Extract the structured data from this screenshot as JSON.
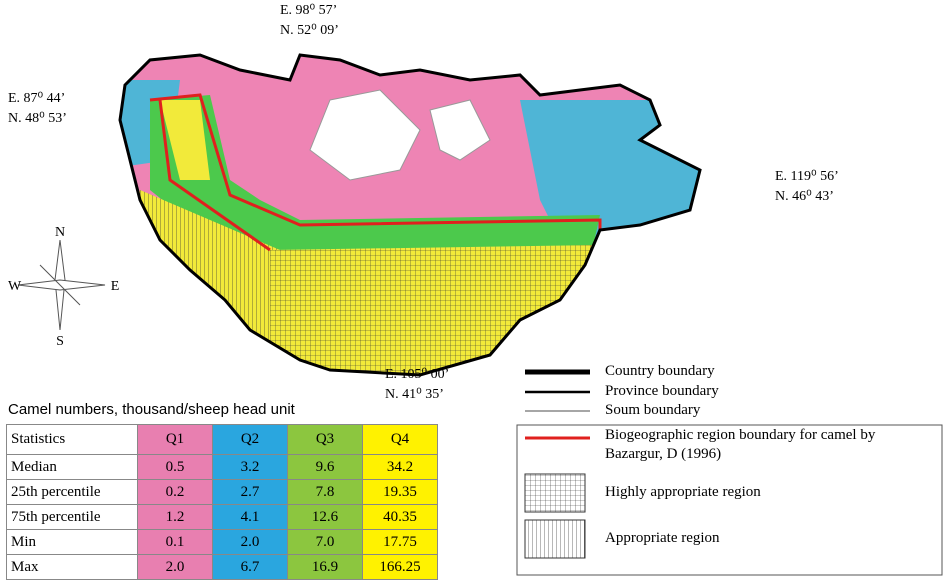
{
  "coordinates": {
    "north": [
      "E. 98⁰ 57’",
      "N. 52⁰ 09’"
    ],
    "west": [
      "E. 87⁰ 44’",
      "N. 48⁰ 53’"
    ],
    "east": [
      "E. 119⁰ 56’",
      "N. 46⁰ 43’"
    ],
    "south": [
      "E. 105⁰ 00’",
      "N. 41⁰ 35’"
    ]
  },
  "compass": {
    "n": "N",
    "s": "S",
    "e": "E",
    "w": "W"
  },
  "table": {
    "title": "Camel numbers, thousand/sheep head unit",
    "header": [
      "Statistics",
      "Q1",
      "Q2",
      "Q3",
      "Q4"
    ],
    "rows": [
      [
        "Median",
        "0.5",
        "3.2",
        "9.6",
        "34.2"
      ],
      [
        "25th percentile",
        "0.2",
        "2.7",
        "7.8",
        "19.35"
      ],
      [
        "75th percentile",
        "1.2",
        "4.1",
        "12.6",
        "40.35"
      ],
      [
        "Min",
        "0.1",
        "2.0",
        "7.0",
        "17.75"
      ],
      [
        "Max",
        "2.0",
        "6.7",
        "16.9",
        "166.25"
      ]
    ]
  },
  "legend": {
    "country": "Country boundary",
    "province": "Province boundary",
    "soum": "Soum boundary",
    "bio": [
      "Biogeographic region boundary for camel by",
      "Bazargur, D (1996)"
    ],
    "highly": "Highly appropriate region",
    "appropriate": "Appropriate region"
  }
}
